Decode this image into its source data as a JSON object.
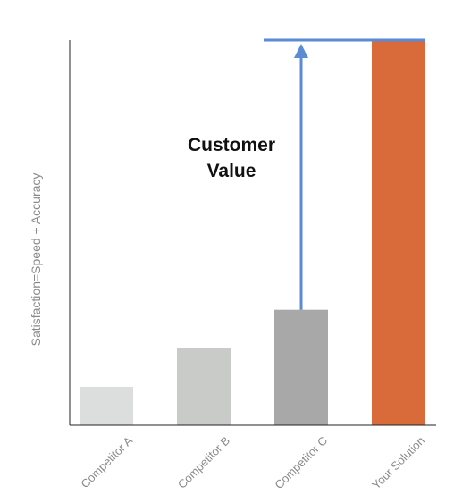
{
  "chart_data": {
    "type": "bar",
    "title": "",
    "xlabel": "",
    "ylabel": "Satisfaction=Speed + Accuracy",
    "categories": [
      "Competitor A",
      "Competitor B",
      "Competitor C",
      "Your Solution"
    ],
    "values": [
      10,
      20,
      30,
      100
    ],
    "ylim": [
      0,
      100
    ],
    "grid": false,
    "colors": [
      "#dcdddd",
      "#c8cbc8",
      "#a7a8a7",
      "#d96a3a"
    ],
    "annotation": {
      "lines": [
        "Customer",
        "Value"
      ],
      "arrow_from_category": "Competitor C",
      "arrow_to_value": 100,
      "arrow_color": "#5b8ad6"
    }
  }
}
